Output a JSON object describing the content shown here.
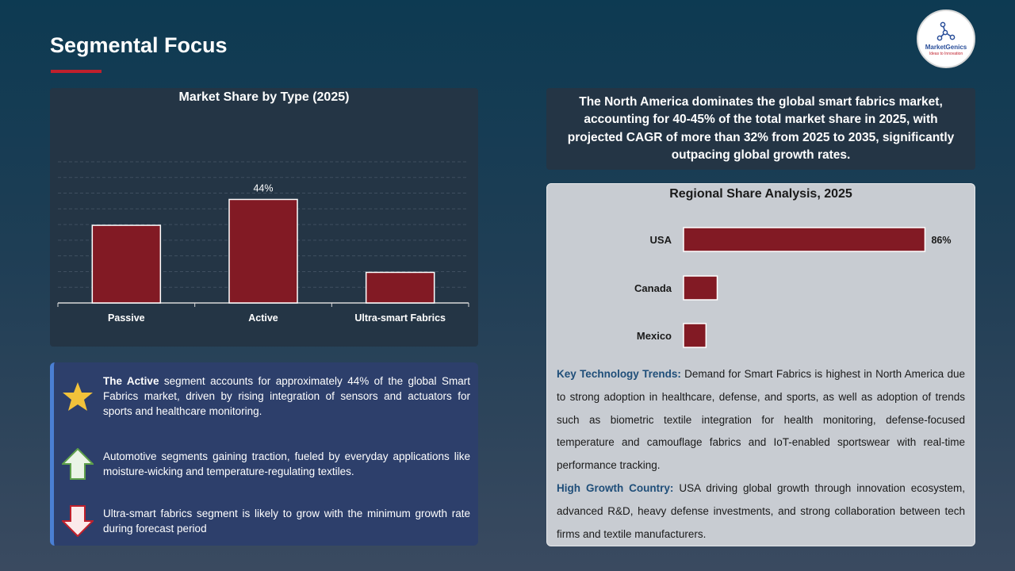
{
  "page": {
    "title": "Segmental Focus",
    "logo": {
      "name": "MarketGenics",
      "tagline": "Ideas to Innovation"
    }
  },
  "type_chart": {
    "title": "Market Share by Type (2025)"
  },
  "insights": [
    {
      "icon": "star-icon",
      "bold": "The Active",
      "text": " segment accounts for approximately 44% of the global Smart Fabrics market, driven by rising integration of sensors and actuators for sports and healthcare monitoring."
    },
    {
      "icon": "arrow-up-icon",
      "bold": "",
      "text": "Automotive segments gaining traction, fueled by everyday applications like moisture-wicking and temperature-regulating textiles."
    },
    {
      "icon": "arrow-down-icon",
      "bold": "",
      "text": "Ultra-smart fabrics segment is likely to grow with the minimum growth rate during forecast period"
    }
  ],
  "summary": "The North America dominates the global smart fabrics market, accounting for 40-45% of the total market share in 2025, with projected CAGR of more than 32% from 2025 to 2035, significantly outpacing global growth rates.",
  "region_chart": {
    "title": "Regional Share Analysis, 2025"
  },
  "trends": {
    "key_label": "Key Technology Trends:",
    "key_text": " Demand for Smart Fabrics is highest in North America due to strong adoption in healthcare, defense, and sports, as well as adoption of trends such as biometric textile integration for health monitoring, defense-focused temperature and camouflage fabrics and IoT-enabled sportswear with real-time performance tracking.",
    "growth_label": "High Growth Country:",
    "growth_text": " USA driving global growth through innovation ecosystem, advanced R&D, heavy defense investments, and strong collaboration between tech firms and textile manufacturers."
  },
  "colors": {
    "bar": "#821a24",
    "accent": "#c0202c",
    "star": "#f2c23a"
  },
  "chart_data": [
    {
      "type": "bar",
      "title": "Market Share by Type (2025)",
      "categories": [
        "Passive",
        "Active",
        "Ultra-smart Fabrics"
      ],
      "values": [
        33,
        44,
        13
      ],
      "data_labels": [
        "",
        "44%",
        ""
      ],
      "ylim": [
        0,
        60
      ],
      "grid": true
    },
    {
      "type": "bar",
      "orientation": "horizontal",
      "title": "Regional Share Analysis, 2025",
      "categories": [
        "USA",
        "Canada",
        "Mexico"
      ],
      "values": [
        86,
        12,
        8
      ],
      "data_labels": [
        "86%",
        "",
        ""
      ],
      "xlim": [
        0,
        100
      ]
    }
  ]
}
